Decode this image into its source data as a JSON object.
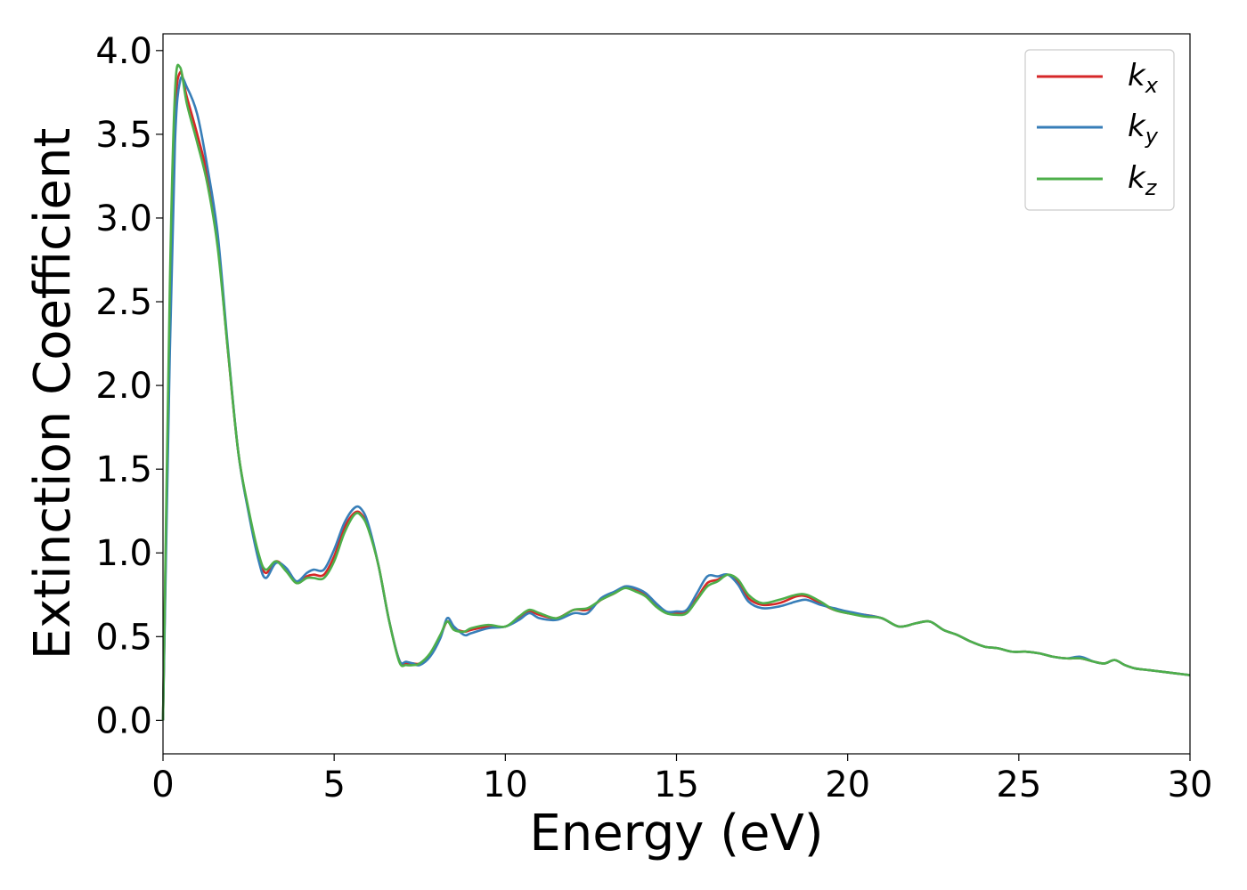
{
  "chart_data": {
    "type": "line",
    "title": "",
    "xlabel": "Energy (eV)",
    "ylabel": "Extinction Coefficient",
    "xlim": [
      0,
      30
    ],
    "ylim": [
      -0.2,
      4.1
    ],
    "xticks": [
      0,
      5,
      10,
      15,
      20,
      25,
      30
    ],
    "xtick_labels": [
      "0",
      "5",
      "10",
      "15",
      "20",
      "25",
      "30"
    ],
    "yticks": [
      0.0,
      0.5,
      1.0,
      1.5,
      2.0,
      2.5,
      3.0,
      3.5,
      4.0
    ],
    "ytick_labels": [
      "0.0",
      "0.5",
      "1.0",
      "1.5",
      "2.0",
      "2.5",
      "3.0",
      "3.5",
      "4.0"
    ],
    "grid": false,
    "legend_position": "top-right",
    "x": [
      0,
      0.2,
      0.35,
      0.5,
      0.7,
      1.0,
      1.3,
      1.6,
      1.9,
      2.2,
      2.5,
      2.8,
      3.0,
      3.3,
      3.6,
      3.9,
      4.2,
      4.4,
      4.7,
      5.0,
      5.3,
      5.6,
      5.8,
      6.0,
      6.3,
      6.6,
      6.9,
      7.1,
      7.3,
      7.5,
      7.8,
      8.1,
      8.3,
      8.5,
      8.8,
      9.0,
      9.5,
      10.0,
      10.4,
      10.7,
      11.0,
      11.5,
      12.0,
      12.4,
      12.8,
      13.2,
      13.5,
      13.8,
      14.1,
      14.4,
      14.7,
      15.0,
      15.3,
      15.6,
      15.9,
      16.2,
      16.5,
      16.8,
      17.1,
      17.5,
      18.0,
      18.5,
      18.8,
      19.2,
      19.6,
      20.0,
      20.5,
      21.0,
      21.5,
      22.0,
      22.4,
      22.8,
      23.2,
      23.6,
      24.0,
      24.4,
      24.8,
      25.2,
      25.6,
      26.0,
      26.4,
      26.8,
      27.2,
      27.5,
      27.8,
      28.1,
      28.4,
      28.8,
      29.2,
      29.6,
      30.0
    ],
    "series": [
      {
        "name": "k_x",
        "color": "#d62728",
        "values": [
          0.0,
          2.4,
          3.6,
          3.87,
          3.72,
          3.5,
          3.25,
          2.85,
          2.2,
          1.6,
          1.25,
          0.98,
          0.88,
          0.95,
          0.9,
          0.82,
          0.86,
          0.87,
          0.87,
          0.98,
          1.15,
          1.24,
          1.23,
          1.15,
          0.92,
          0.6,
          0.36,
          0.34,
          0.34,
          0.34,
          0.39,
          0.5,
          0.59,
          0.55,
          0.53,
          0.54,
          0.56,
          0.56,
          0.61,
          0.65,
          0.63,
          0.61,
          0.66,
          0.66,
          0.72,
          0.76,
          0.8,
          0.78,
          0.75,
          0.69,
          0.64,
          0.64,
          0.65,
          0.73,
          0.82,
          0.84,
          0.87,
          0.83,
          0.73,
          0.69,
          0.7,
          0.74,
          0.74,
          0.7,
          0.66,
          0.64,
          0.63,
          0.61,
          0.56,
          0.58,
          0.59,
          0.54,
          0.51,
          0.47,
          0.44,
          0.43,
          0.41,
          0.41,
          0.4,
          0.38,
          0.37,
          0.37,
          0.35,
          0.34,
          0.36,
          0.33,
          0.31,
          0.3,
          0.29,
          0.28,
          0.27
        ]
      },
      {
        "name": "k_y",
        "color": "#377eb8",
        "values": [
          0.0,
          2.2,
          3.45,
          3.82,
          3.78,
          3.62,
          3.3,
          2.9,
          2.22,
          1.6,
          1.24,
          0.95,
          0.85,
          0.94,
          0.91,
          0.83,
          0.88,
          0.9,
          0.9,
          1.02,
          1.18,
          1.27,
          1.26,
          1.17,
          0.92,
          0.6,
          0.36,
          0.35,
          0.34,
          0.33,
          0.38,
          0.49,
          0.61,
          0.56,
          0.51,
          0.52,
          0.55,
          0.56,
          0.6,
          0.64,
          0.61,
          0.6,
          0.64,
          0.64,
          0.73,
          0.77,
          0.8,
          0.79,
          0.76,
          0.7,
          0.65,
          0.65,
          0.66,
          0.76,
          0.86,
          0.86,
          0.87,
          0.81,
          0.71,
          0.67,
          0.68,
          0.71,
          0.72,
          0.69,
          0.67,
          0.65,
          0.63,
          0.61,
          0.56,
          0.58,
          0.59,
          0.54,
          0.51,
          0.47,
          0.44,
          0.43,
          0.41,
          0.41,
          0.4,
          0.38,
          0.37,
          0.38,
          0.35,
          0.34,
          0.36,
          0.33,
          0.31,
          0.3,
          0.29,
          0.28,
          0.27
        ]
      },
      {
        "name": "k_z",
        "color": "#4daf4a",
        "values": [
          0.0,
          2.6,
          3.75,
          3.9,
          3.68,
          3.45,
          3.2,
          2.82,
          2.2,
          1.6,
          1.26,
          0.99,
          0.9,
          0.95,
          0.89,
          0.82,
          0.85,
          0.85,
          0.85,
          0.95,
          1.12,
          1.23,
          1.22,
          1.14,
          0.92,
          0.6,
          0.35,
          0.33,
          0.33,
          0.34,
          0.4,
          0.51,
          0.59,
          0.54,
          0.53,
          0.55,
          0.57,
          0.56,
          0.62,
          0.66,
          0.64,
          0.61,
          0.66,
          0.67,
          0.72,
          0.76,
          0.79,
          0.77,
          0.74,
          0.68,
          0.64,
          0.63,
          0.64,
          0.72,
          0.8,
          0.83,
          0.87,
          0.84,
          0.75,
          0.7,
          0.72,
          0.75,
          0.75,
          0.71,
          0.66,
          0.64,
          0.62,
          0.61,
          0.56,
          0.58,
          0.59,
          0.54,
          0.51,
          0.47,
          0.44,
          0.43,
          0.41,
          0.41,
          0.4,
          0.38,
          0.37,
          0.37,
          0.35,
          0.34,
          0.36,
          0.33,
          0.31,
          0.3,
          0.29,
          0.28,
          0.27
        ]
      }
    ]
  },
  "legend": {
    "entries": [
      {
        "base": "k",
        "sub": "x"
      },
      {
        "base": "k",
        "sub": "y"
      },
      {
        "base": "k",
        "sub": "z"
      }
    ]
  }
}
